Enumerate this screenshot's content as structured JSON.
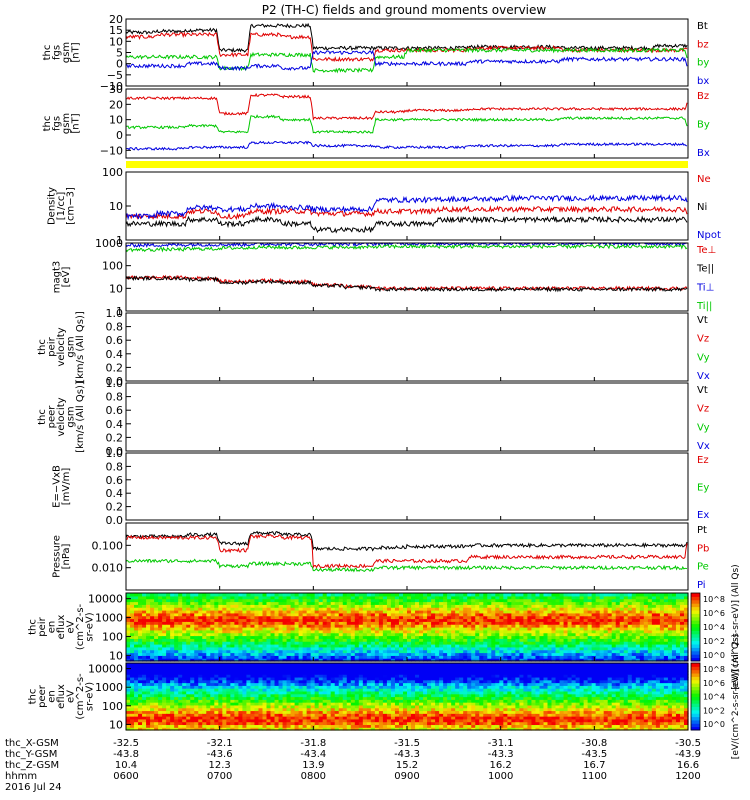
{
  "title": "P2 (TH-C) fields and ground moments overview",
  "colors": {
    "black": "#000000",
    "red": "#e00000",
    "green": "#00c800",
    "blue": "#0000e0",
    "yellow": "#ffff00"
  },
  "chart_data": [
    {
      "id": "fgs-gsm",
      "type": "line",
      "ylabel": [
        "thc",
        "fgs",
        "gsm",
        "[nT]"
      ],
      "ylim": [
        -10,
        20
      ],
      "yticks": [
        "20",
        "15",
        "10",
        "5",
        "0",
        "−5",
        "−10"
      ],
      "series": [
        {
          "name": "Bt",
          "color": "#000000",
          "values": [
            14,
            14.5,
            15,
            6,
            17,
            17,
            7,
            7,
            7,
            7,
            7,
            7.5,
            7.5,
            7.5,
            7,
            7,
            7,
            8,
            8
          ]
        },
        {
          "name": "bz",
          "color": "#e00000",
          "values": [
            12,
            13,
            13,
            4,
            13,
            12,
            2,
            2,
            6,
            6,
            6,
            7,
            7,
            7,
            6,
            6,
            6,
            6,
            7
          ]
        },
        {
          "name": "by",
          "color": "#00c800",
          "values": [
            3,
            3,
            3,
            -2,
            4,
            4,
            -3,
            -3,
            3,
            6,
            6,
            6,
            6,
            6,
            6,
            6,
            6,
            6,
            2
          ]
        },
        {
          "name": "bx",
          "color": "#0000e0",
          "values": [
            -1,
            -1,
            0,
            -2,
            -1,
            -2,
            5,
            5,
            0,
            0,
            0,
            1,
            1,
            1,
            2,
            2,
            2,
            2,
            -2
          ]
        }
      ]
    },
    {
      "id": "fgs-gsm-model",
      "type": "line",
      "ylabel": [
        "thc",
        "fgs",
        "gsm",
        "[nT]"
      ],
      "ylim": [
        -15,
        30
      ],
      "yticks": [
        "30",
        "20",
        "10",
        "0",
        "−10"
      ],
      "series": [
        {
          "name": "Bz",
          "color": "#e00000",
          "values": [
            24,
            24,
            24,
            14,
            26,
            25,
            11,
            11,
            15,
            16,
            16,
            17,
            17,
            17,
            17,
            17,
            17,
            17,
            22
          ]
        },
        {
          "name": "By",
          "color": "#00c800",
          "values": [
            5,
            5,
            6,
            2,
            12,
            10,
            2,
            2,
            10,
            10,
            10,
            10,
            10,
            10,
            11,
            11,
            11,
            11,
            3
          ]
        },
        {
          "name": "Bx",
          "color": "#0000e0",
          "values": [
            -9,
            -9,
            -8,
            -8,
            -5,
            -5,
            -7,
            -7,
            -8,
            -8,
            -8,
            -7,
            -7,
            -7,
            -6,
            -6,
            -6,
            -6,
            -8
          ]
        }
      ]
    },
    {
      "id": "density",
      "type": "line",
      "scale": "log",
      "ylabel": [
        "Density",
        "[1/cc]",
        "[cm−3]"
      ],
      "ylim": [
        1,
        100
      ],
      "yticks": [
        "100",
        "10",
        "1"
      ],
      "series": [
        {
          "name": "Ne",
          "color": "#e00000",
          "values": [
            5,
            5,
            7,
            5,
            7,
            7,
            6,
            6,
            7,
            7,
            8,
            8,
            8,
            8,
            8,
            8,
            8,
            8,
            6
          ]
        },
        {
          "name": "Ni",
          "color": "#000000",
          "values": [
            3,
            3,
            4,
            3,
            4,
            3,
            2,
            2,
            3,
            3,
            4,
            4,
            4,
            4,
            4,
            4,
            4,
            4,
            3
          ]
        },
        {
          "name": "Npot",
          "color": "#0000e0",
          "values": [
            5,
            6,
            9,
            8,
            10,
            9,
            8,
            8,
            15,
            15,
            16,
            16,
            17,
            17,
            17,
            17,
            17,
            17,
            10
          ]
        }
      ]
    },
    {
      "id": "temperature",
      "type": "line",
      "scale": "log",
      "ylabel": [
        "magt3",
        "[eV]"
      ],
      "ylim": [
        1,
        1000
      ],
      "yticks": [
        "1000",
        "100",
        "10",
        "1"
      ],
      "series": [
        {
          "name": "Te⊥",
          "color": "#e00000",
          "values": [
            30,
            30,
            28,
            20,
            22,
            20,
            14,
            12,
            10,
            10,
            10,
            10,
            10,
            10,
            10,
            10,
            10,
            10,
            12
          ]
        },
        {
          "name": "Te||",
          "color": "#000000",
          "values": [
            28,
            28,
            25,
            18,
            20,
            18,
            13,
            11,
            9,
            9,
            9,
            9,
            9,
            9,
            9,
            9,
            9,
            9,
            10
          ]
        },
        {
          "name": "Ti⊥",
          "color": "#0000e0",
          "values": [
            800,
            820,
            850,
            850,
            900,
            880,
            900,
            900,
            950,
            950,
            950,
            950,
            950,
            950,
            950,
            950,
            950,
            950,
            900
          ]
        },
        {
          "name": "Ti||",
          "color": "#00c800",
          "values": [
            500,
            520,
            550,
            600,
            650,
            630,
            650,
            650,
            700,
            700,
            700,
            700,
            700,
            700,
            700,
            700,
            700,
            700,
            600
          ]
        }
      ]
    },
    {
      "id": "peir-velocity",
      "type": "line",
      "ylabel": [
        "thc",
        "peir",
        "velocity",
        "gsm",
        "[km/s (All Qs)]"
      ],
      "ylim": [
        0,
        1
      ],
      "yticks": [
        "1.0",
        "0.8",
        "0.6",
        "0.4",
        "0.2",
        "0.0"
      ],
      "series": [
        {
          "name": "Vt",
          "color": "#000000",
          "values": []
        },
        {
          "name": "Vz",
          "color": "#e00000",
          "values": []
        },
        {
          "name": "Vy",
          "color": "#00c800",
          "values": []
        },
        {
          "name": "Vx",
          "color": "#0000e0",
          "values": []
        }
      ]
    },
    {
      "id": "peer-velocity",
      "type": "line",
      "ylabel": [
        "thc",
        "peer",
        "velocity",
        "gsm",
        "[km/s (All Qs)]"
      ],
      "ylim": [
        0,
        1
      ],
      "yticks": [
        "1.0",
        "0.8",
        "0.6",
        "0.4",
        "0.2",
        "0.0"
      ],
      "series": [
        {
          "name": "Vt",
          "color": "#000000",
          "values": []
        },
        {
          "name": "Vz",
          "color": "#e00000",
          "values": []
        },
        {
          "name": "Vy",
          "color": "#00c800",
          "values": []
        },
        {
          "name": "Vx",
          "color": "#0000e0",
          "values": []
        }
      ]
    },
    {
      "id": "efield",
      "type": "line",
      "ylabel": [
        "E=−VxB",
        "[mV/m]"
      ],
      "ylim": [
        0,
        1
      ],
      "yticks": [
        "1.0",
        "0.8",
        "0.6",
        "0.4",
        "0.2",
        "0.0"
      ],
      "series": [
        {
          "name": "Ez",
          "color": "#e00000",
          "values": []
        },
        {
          "name": "Ey",
          "color": "#00c800",
          "values": []
        },
        {
          "name": "Ex",
          "color": "#0000e0",
          "values": []
        }
      ]
    },
    {
      "id": "pressure",
      "type": "line",
      "scale": "log",
      "ylabel": [
        "Pressure",
        "[nPa]"
      ],
      "ylim": [
        0.001,
        1
      ],
      "yticks": [
        "0.100",
        "0.010"
      ],
      "series": [
        {
          "name": "Pt",
          "color": "#000000",
          "values": [
            0.25,
            0.25,
            0.3,
            0.12,
            0.35,
            0.3,
            0.07,
            0.07,
            0.08,
            0.09,
            0.09,
            0.1,
            0.1,
            0.1,
            0.1,
            0.1,
            0.1,
            0.1,
            0.15
          ]
        },
        {
          "name": "Pb",
          "color": "#e00000",
          "values": [
            0.22,
            0.22,
            0.22,
            0.06,
            0.25,
            0.22,
            0.012,
            0.012,
            0.02,
            0.02,
            0.02,
            0.03,
            0.03,
            0.03,
            0.03,
            0.03,
            0.03,
            0.03,
            0.14
          ]
        },
        {
          "name": "Pe",
          "color": "#00c800",
          "values": [
            0.02,
            0.02,
            0.02,
            0.012,
            0.015,
            0.015,
            0.008,
            0.008,
            0.01,
            0.01,
            0.01,
            0.01,
            0.01,
            0.01,
            0.01,
            0.01,
            0.01,
            0.01,
            0.008
          ]
        },
        {
          "name": "Pi",
          "color": "#0000e0",
          "values": []
        }
      ]
    },
    {
      "id": "peir-eflux",
      "type": "heatmap",
      "scale": "log",
      "ylabel": [
        "thc",
        "peir",
        "en",
        "eflux",
        "eV",
        "(cm^2-s-",
        "sr-eV)"
      ],
      "ylim": [
        5,
        20000
      ],
      "yticks": [
        "10000",
        "1000",
        "100",
        "10"
      ],
      "colorbar": {
        "label": "[eV/(cm^2-s-sr-eV)] (All Qs)",
        "ticks": [
          "10^8",
          "10^6",
          "10^4",
          "10^2",
          "10^0"
        ]
      },
      "peak_energy_ev": 800
    },
    {
      "id": "peer-eflux",
      "type": "heatmap",
      "scale": "log",
      "ylabel": [
        "thc",
        "peer",
        "en",
        "eflux",
        "eV",
        "(cm^2-s-",
        "sr-eV)"
      ],
      "ylim": [
        5,
        20000
      ],
      "yticks": [
        "10000",
        "1000",
        "100",
        "10"
      ],
      "colorbar": {
        "label": "[eV/(cm^2-s-sr-eV)] (All Qs)",
        "ticks": [
          "10^8",
          "10^6",
          "10^4",
          "10^2",
          "10^0"
        ]
      },
      "peak_energy_ev": 20
    }
  ],
  "xaxis": {
    "row_labels": [
      "thc_X-GSM",
      "thc_Y-GSM",
      "thc_Z-GSM",
      "hhmm"
    ],
    "date": "2016 Jul 24",
    "ticks": [
      {
        "x": "-32.5",
        "y": "-43.8",
        "z": "10.4",
        "hhmm": "0600"
      },
      {
        "x": "-32.1",
        "y": "-43.6",
        "z": "12.3",
        "hhmm": "0700"
      },
      {
        "x": "-31.8",
        "y": "-43.4",
        "z": "13.9",
        "hhmm": "0800"
      },
      {
        "x": "-31.5",
        "y": "-43.3",
        "z": "15.2",
        "hhmm": "0900"
      },
      {
        "x": "-31.1",
        "y": "-43.3",
        "z": "16.2",
        "hhmm": "1000"
      },
      {
        "x": "-30.8",
        "y": "-43.5",
        "z": "16.7",
        "hhmm": "1100"
      },
      {
        "x": "-30.5",
        "y": "-43.9",
        "z": "16.6",
        "hhmm": "1200"
      }
    ]
  }
}
